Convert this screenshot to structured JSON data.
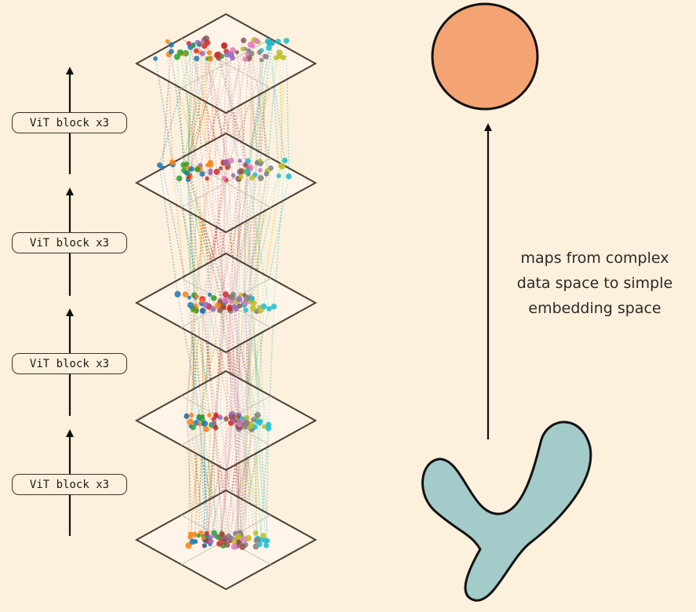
{
  "blocks": [
    {
      "label": "ViT block x3"
    },
    {
      "label": "ViT block x3"
    },
    {
      "label": "ViT block x3"
    },
    {
      "label": "ViT block x3"
    }
  ],
  "caption": {
    "lines": [
      "maps from complex",
      "data space to simple",
      "embedding space"
    ]
  },
  "colors": {
    "background": "#fdf0dc",
    "sphere": "#f4a373",
    "manifold": "#a3cbca",
    "outline": "#1a1a1a",
    "plane_edge": "#4a3f35",
    "point_palette": [
      "#1f77b4",
      "#ff7f0e",
      "#2ca02c",
      "#d62728",
      "#9467bd",
      "#8c564b",
      "#e377c2",
      "#7f7f7f",
      "#bcbd22",
      "#17becf"
    ]
  },
  "icons": [
    "up-arrow-icon",
    "sphere-icon",
    "data-manifold-icon",
    "embedding-plane-icon"
  ]
}
